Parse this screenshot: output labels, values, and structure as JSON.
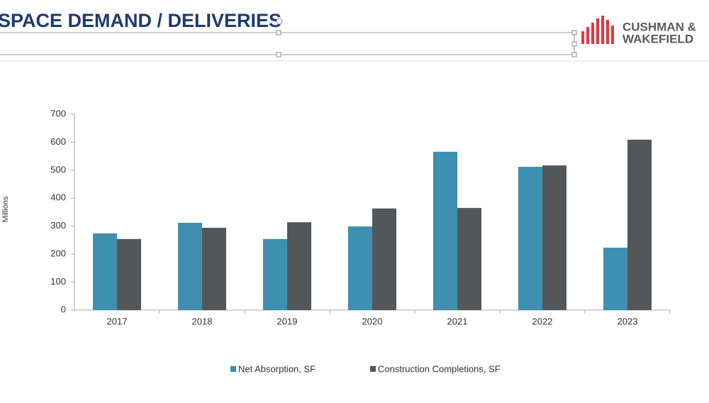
{
  "header": {
    "title": "SPACE DEMAND / DELIVERIES",
    "logo": [
      "CUSHMAN &",
      "WAKEFIELD"
    ]
  },
  "chart_data": {
    "type": "bar",
    "y_label": "Millions",
    "categories": [
      "2017",
      "2018",
      "2019",
      "2020",
      "2021",
      "2022",
      "2023"
    ],
    "series": [
      {
        "name": "Net Absorption, SF",
        "color": "#3f8fb0",
        "values": [
          274,
          312,
          254,
          299,
          566,
          512,
          223
        ]
      },
      {
        "name": "Construction Completions, SF",
        "color": "#545759",
        "values": [
          254,
          294,
          314,
          363,
          365,
          517,
          609
        ]
      }
    ],
    "ylim": [
      0,
      700
    ],
    "yticks": [
      0,
      100,
      200,
      300,
      400,
      500,
      600,
      700
    ],
    "grid": false
  }
}
